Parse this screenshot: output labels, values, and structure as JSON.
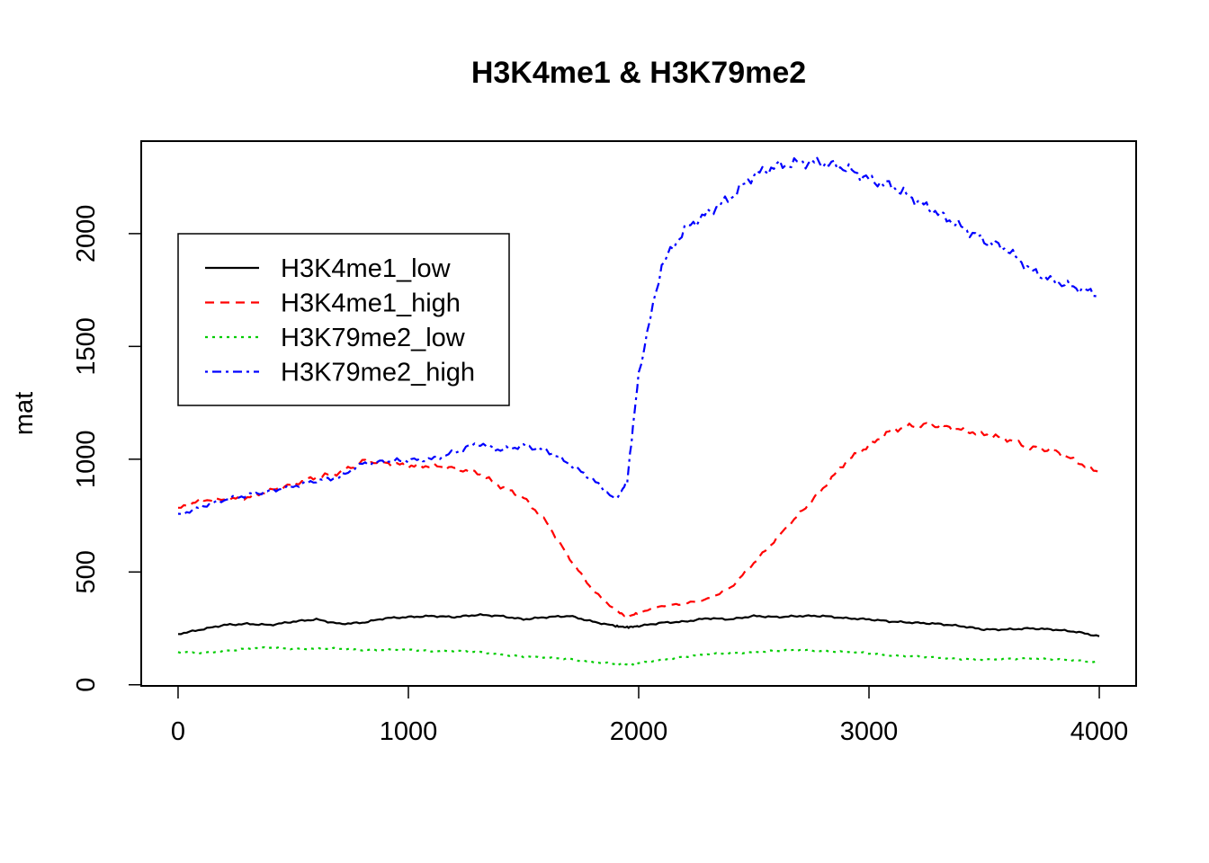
{
  "chart_data": {
    "type": "line",
    "title": "H3K4me1 & H3K79me2",
    "xlabel": "",
    "ylabel": "mat",
    "xlim": [
      -160,
      4160
    ],
    "ylim": [
      -5,
      2410
    ],
    "x_ticks": [
      0,
      1000,
      2000,
      3000,
      4000
    ],
    "y_ticks": [
      0,
      500,
      1000,
      1500,
      2000
    ],
    "grid": false,
    "legend_position": "top-left",
    "x": [
      0,
      100,
      200,
      300,
      400,
      500,
      600,
      700,
      800,
      900,
      1000,
      1100,
      1200,
      1300,
      1400,
      1500,
      1600,
      1700,
      1800,
      1900,
      1950,
      2000,
      2100,
      2200,
      2300,
      2400,
      2500,
      2600,
      2700,
      2800,
      2900,
      3000,
      3100,
      3200,
      3300,
      3400,
      3500,
      3600,
      3700,
      3800,
      3900,
      4000
    ],
    "series": [
      {
        "name": "H3K4me1_low",
        "color": "#000000",
        "dash": "solid",
        "values": [
          225,
          245,
          265,
          270,
          265,
          280,
          290,
          270,
          275,
          295,
          300,
          305,
          300,
          310,
          305,
          290,
          300,
          305,
          280,
          260,
          255,
          260,
          275,
          280,
          295,
          290,
          305,
          300,
          305,
          305,
          295,
          290,
          280,
          275,
          270,
          260,
          245,
          245,
          250,
          245,
          235,
          215
        ]
      },
      {
        "name": "H3K4me1_high",
        "color": "#ff0000",
        "dash": "dashed",
        "values": [
          780,
          820,
          820,
          830,
          860,
          890,
          920,
          940,
          990,
          985,
          970,
          970,
          960,
          940,
          880,
          830,
          720,
          560,
          420,
          330,
          300,
          320,
          350,
          360,
          380,
          430,
          540,
          650,
          760,
          870,
          990,
          1060,
          1130,
          1150,
          1150,
          1130,
          1110,
          1090,
          1050,
          1040,
          990,
          940
        ]
      },
      {
        "name": "H3K79me2_low",
        "color": "#00cc00",
        "dash": "dotted",
        "values": [
          145,
          140,
          150,
          160,
          165,
          160,
          160,
          160,
          155,
          155,
          155,
          150,
          150,
          145,
          135,
          125,
          120,
          115,
          100,
          92,
          90,
          95,
          110,
          125,
          135,
          140,
          145,
          150,
          155,
          150,
          145,
          140,
          130,
          125,
          120,
          115,
          110,
          115,
          118,
          112,
          108,
          100
        ]
      },
      {
        "name": "H3K79me2_high",
        "color": "#0000ff",
        "dash": "dashdot",
        "values": [
          750,
          790,
          820,
          840,
          860,
          880,
          905,
          920,
          980,
          990,
          995,
          1000,
          1030,
          1070,
          1040,
          1060,
          1040,
          980,
          910,
          820,
          900,
          1380,
          1860,
          2020,
          2090,
          2160,
          2260,
          2300,
          2315,
          2315,
          2290,
          2240,
          2210,
          2150,
          2090,
          2030,
          1970,
          1930,
          1840,
          1790,
          1760,
          1730
        ]
      }
    ]
  }
}
